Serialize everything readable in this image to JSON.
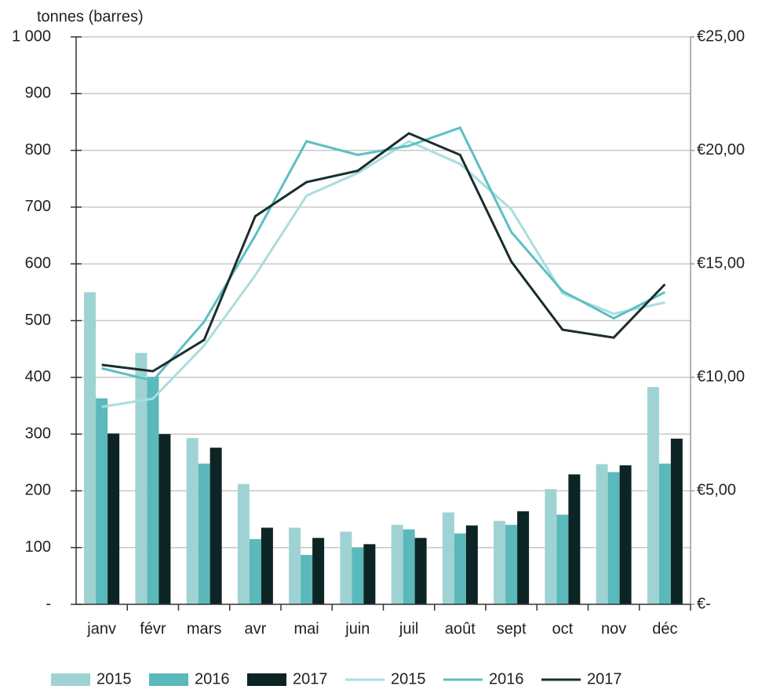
{
  "chart_data": {
    "type": "bar-line",
    "y_axis_label": "tonnes (barres)",
    "categories": [
      "janv",
      "févr",
      "mars",
      "avr",
      "mai",
      "juin",
      "juil",
      "août",
      "sept",
      "oct",
      "nov",
      "déc"
    ],
    "series": [
      {
        "name": "2015",
        "type": "bar",
        "color": "#9fd3d3",
        "values": [
          550,
          443,
          293,
          212,
          135,
          128,
          140,
          162,
          147,
          203,
          247,
          383
        ]
      },
      {
        "name": "2016",
        "type": "bar",
        "color": "#5bb8bb",
        "values": [
          363,
          401,
          248,
          115,
          87,
          100,
          132,
          125,
          140,
          158,
          233,
          248
        ]
      },
      {
        "name": "2017",
        "type": "bar",
        "color": "#0d2424",
        "values": [
          301,
          300,
          276,
          135,
          117,
          106,
          117,
          139,
          164,
          229,
          245,
          292
        ]
      },
      {
        "name": "2015",
        "type": "line",
        "axis": "y2",
        "color": "#a8dede",
        "values": [
          8.7,
          9.06,
          11.4,
          14.5,
          18.0,
          19.0,
          20.4,
          19.4,
          17.4,
          13.7,
          12.8,
          13.3
        ]
      },
      {
        "name": "2016",
        "type": "line",
        "axis": "y2",
        "color": "#5cbfc3",
        "values": [
          10.4,
          9.85,
          12.45,
          16.25,
          20.4,
          19.8,
          20.2,
          21.0,
          16.4,
          13.8,
          12.6,
          13.75
        ]
      },
      {
        "name": "2017",
        "type": "line",
        "axis": "y2",
        "color": "#1a2e2e",
        "values": [
          10.55,
          10.27,
          11.65,
          17.1,
          18.6,
          19.1,
          20.75,
          19.8,
          15.1,
          12.1,
          11.75,
          14.1
        ]
      }
    ],
    "ylim": [
      0,
      1000
    ],
    "yticks": [
      {
        "value": 0,
        "label": "-"
      },
      100,
      200,
      300,
      400,
      500,
      600,
      700,
      800,
      900,
      {
        "value": 1000,
        "label": "1 000"
      }
    ],
    "y2lim": [
      0,
      25
    ],
    "y2ticks": [
      {
        "value": 0,
        "label": "€-"
      },
      {
        "value": 5,
        "label": "€5,00"
      },
      {
        "value": 10,
        "label": "€10,00"
      },
      {
        "value": 15,
        "label": "€15,00"
      },
      {
        "value": 20,
        "label": "€20,00"
      },
      {
        "value": 25,
        "label": "€25,00"
      }
    ],
    "grid": true,
    "legend": "bottom"
  }
}
